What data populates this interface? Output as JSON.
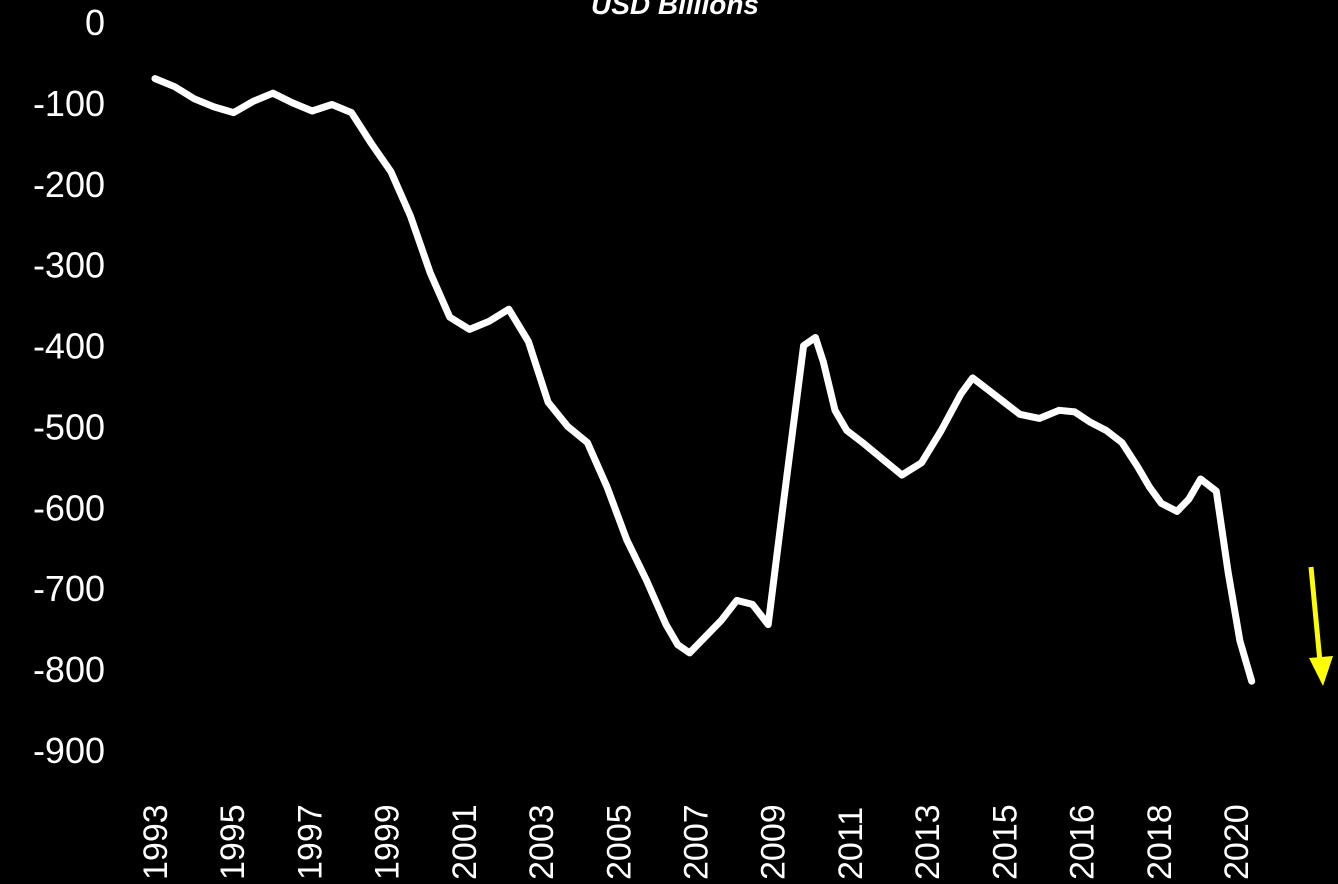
{
  "chart_data": {
    "type": "line",
    "title": "USD Billions",
    "xlabel": "",
    "ylabel": "",
    "ylim": [
      -900,
      0
    ],
    "yticks": [
      0,
      -100,
      -200,
      -300,
      -400,
      -500,
      -600,
      -700,
      -800,
      -900
    ],
    "xticks": [
      "1993",
      "1995",
      "1997",
      "1999",
      "2001",
      "2003",
      "2005",
      "2007",
      "2009",
      "2011",
      "2013",
      "2015",
      "2016",
      "2018",
      "2020"
    ],
    "grid": false,
    "legend": "none",
    "series": [
      {
        "color": "#ffffff",
        "x": [
          1993.0,
          1993.5,
          1994.0,
          1994.5,
          1995.0,
          1995.5,
          1996.0,
          1996.5,
          1997.0,
          1997.5,
          1998.0,
          1998.5,
          1999.0,
          1999.5,
          2000.0,
          2000.5,
          2001.0,
          2001.5,
          2002.0,
          2002.5,
          2003.0,
          2003.5,
          2004.0,
          2004.5,
          2005.0,
          2005.5,
          2006.0,
          2006.3,
          2006.6,
          2007.0,
          2007.4,
          2007.8,
          2008.2,
          2008.6,
          2009.0,
          2009.5,
          2009.8,
          2010.0,
          2010.3,
          2010.6,
          2011.0,
          2011.5,
          2012.0,
          2012.5,
          2013.0,
          2013.5,
          2013.8,
          2014.2,
          2014.6,
          2015.0,
          2015.5,
          2016.0,
          2016.4,
          2016.8,
          2017.2,
          2017.6,
          2018.0,
          2018.3,
          2018.6,
          2019.0,
          2019.3,
          2019.6,
          2020.0,
          2020.3,
          2020.6,
          2020.9
        ],
        "values": [
          -70,
          -80,
          -95,
          -105,
          -112,
          -98,
          -88,
          -100,
          -110,
          -102,
          -112,
          -150,
          -185,
          -240,
          -310,
          -365,
          -380,
          -370,
          -355,
          -395,
          -470,
          -500,
          -520,
          -575,
          -640,
          -690,
          -745,
          -770,
          -780,
          -760,
          -740,
          -715,
          -720,
          -745,
          -590,
          -400,
          -390,
          -420,
          -480,
          -505,
          -520,
          -540,
          -560,
          -545,
          -505,
          -460,
          -440,
          -455,
          -470,
          -485,
          -490,
          -480,
          -482,
          -495,
          -505,
          -520,
          -550,
          -575,
          -595,
          -605,
          -590,
          -565,
          -580,
          -680,
          -765,
          -815
        ]
      }
    ],
    "annotations": [
      {
        "type": "arrow",
        "direction": "down",
        "color": "#ffff00"
      }
    ]
  }
}
